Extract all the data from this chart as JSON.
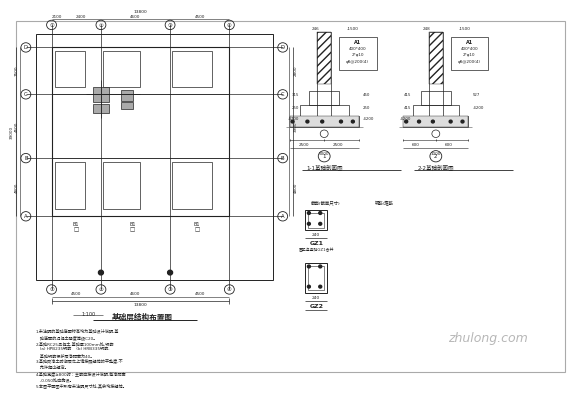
{
  "bg_color": "#ffffff",
  "border_color": "#cccccc",
  "line_color": "#222222",
  "title": "基础层结构布置图",
  "notes": [
    "1.未注明的基础底面标高均为基础设计说明,基",
    "   础底面的混凝土强度等级C20。",
    "2.基础RC25混凝土,基础厚100mm处,钢筋",
    "   (a) HPB235钢筋    (b) HRB335钢筋,",
    "   基础钢筋保护层净距离为40。",
    "3.基础砖净土防潮层之上请按照规范的平整度,不",
    "   允许超出规定。",
    "4.基础宽度≥800时：主筋应按设计说明,每净距离",
    "   -0.050处应施设。",
    "5.本图平面图中所有未注明尺寸处,其余均按规范。"
  ],
  "watermark": "zhulong.com",
  "scale_note": "1:100"
}
